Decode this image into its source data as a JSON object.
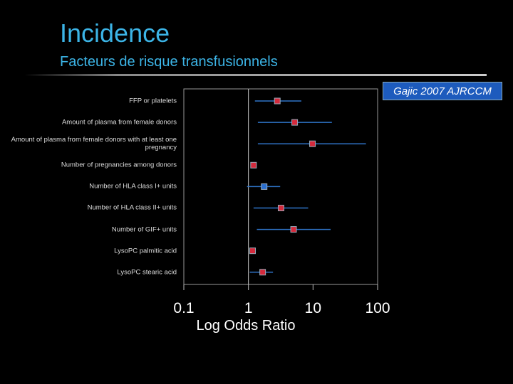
{
  "slide": {
    "title": "Incidence",
    "subtitle": "Facteurs de risque transfusionnels",
    "citation": "Gajic 2007 AJRCCM"
  },
  "chart_data": {
    "type": "forest",
    "xlabel": "Log Odds Ratio",
    "log_scale": true,
    "categories": [
      "FFP or platelets",
      "Amount of plasma from female donors",
      "Amount of plasma from female donors with at least one pregnancy",
      "Number of pregnancies among donors",
      "Number of HLA class I+ units",
      "Number of HLA class II+ units",
      "Number of GIF+ units",
      "LysoPC palmitic acid",
      "LysoPC stearic acid"
    ],
    "values": [
      2.8,
      5.2,
      9.8,
      1.2,
      1.75,
      3.2,
      5.0,
      1.16,
      1.66
    ],
    "ci_low": [
      1.26,
      1.4,
      1.4,
      1.08,
      0.95,
      1.2,
      1.35,
      1.05,
      1.05
    ],
    "ci_high": [
      6.6,
      19.6,
      66,
      1.32,
      3.1,
      8.4,
      18.7,
      1.29,
      2.4
    ],
    "point_colors": [
      "#d42a3c",
      "#d42a3c",
      "#d42a3c",
      "#d42a3c",
      "#2a6fd0",
      "#d42a3c",
      "#d42a3c",
      "#d42a3c",
      "#d42a3c"
    ],
    "ci_color": "#2f74c8",
    "reference_line": 1,
    "xlim": [
      0.1,
      100
    ],
    "xticks": [
      0.1,
      1,
      10,
      100
    ]
  }
}
